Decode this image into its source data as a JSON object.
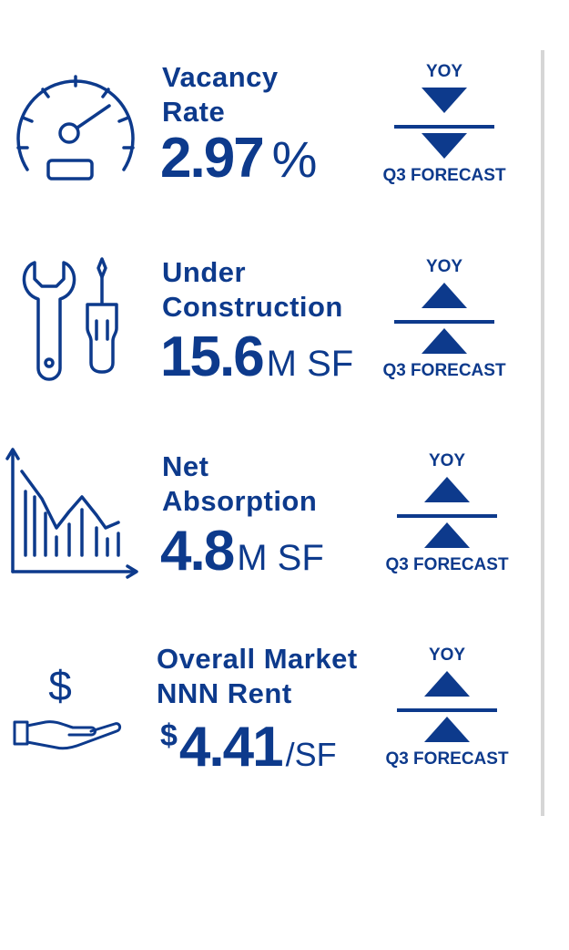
{
  "colors": {
    "primary": "#0d3a8c",
    "divider": "#d6d6d6"
  },
  "stats": [
    {
      "icon": "speedometer-icon",
      "title_line1": "Vacancy",
      "title_line2": "Rate",
      "value": "2.97",
      "unit": "%",
      "yoy_label": "YOY",
      "forecast_label": "Q3 FORECAST",
      "yoy_direction": "down",
      "forecast_direction": "down"
    },
    {
      "icon": "tools-icon",
      "title_line1": "Under",
      "title_line2": "Construction",
      "value": "15.6",
      "unit": "M SF",
      "yoy_label": "YOY",
      "forecast_label": "Q3 FORECAST",
      "yoy_direction": "up",
      "forecast_direction": "up"
    },
    {
      "icon": "bar-line-chart-icon",
      "title_line1": "Net",
      "title_line2": "Absorption",
      "value": "4.8",
      "unit": "M SF",
      "yoy_label": "YOY",
      "forecast_label": "Q3 FORECAST",
      "yoy_direction": "up",
      "forecast_direction": "up"
    },
    {
      "icon": "hand-dollar-icon",
      "title_line1": "Overall Market",
      "title_line2": "NNN Rent",
      "prefix": "$",
      "value": "4.41",
      "unit": "/SF",
      "yoy_label": "YOY",
      "forecast_label": "Q3 FORECAST",
      "yoy_direction": "up",
      "forecast_direction": "up"
    }
  ]
}
